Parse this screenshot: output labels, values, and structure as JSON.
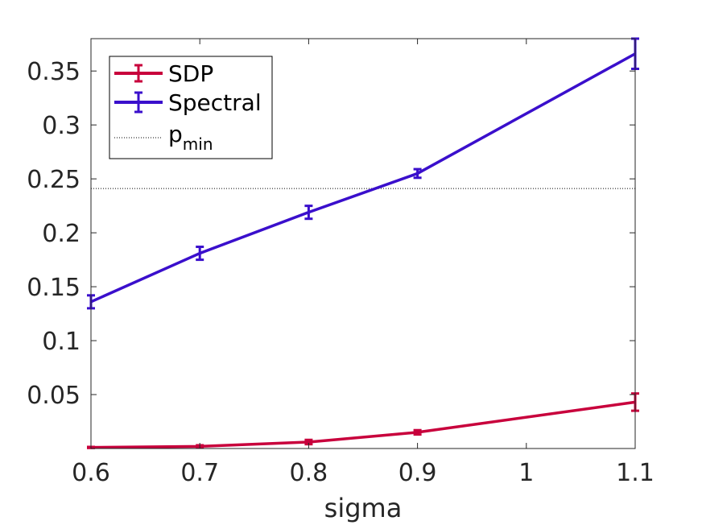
{
  "chart_data": {
    "type": "line",
    "title": "",
    "xlabel": "sigma",
    "ylabel": "",
    "x": [
      0.6,
      0.7,
      0.8,
      0.9,
      1.0,
      1.1
    ],
    "xticks": [
      "0.6",
      "0.7",
      "0.8",
      "0.9",
      "1",
      "1.1"
    ],
    "yticks": [
      "0.05",
      "0.1",
      "0.15",
      "0.2",
      "0.25",
      "0.3",
      "0.35"
    ],
    "xlim": [
      0.6,
      1.1
    ],
    "ylim": [
      0.0,
      0.38
    ],
    "grid": false,
    "legend_position": "top-left",
    "series": [
      {
        "name": "SDP",
        "color": "#c8003c",
        "x": [
          0.6,
          0.7,
          0.8,
          0.9,
          1.1
        ],
        "values": [
          0.001,
          0.002,
          0.006,
          0.015,
          0.043
        ],
        "errors": [
          0.0005,
          0.001,
          0.002,
          0.002,
          0.008
        ]
      },
      {
        "name": "Spectral",
        "color": "#3a0fcc",
        "x": [
          0.6,
          0.7,
          0.8,
          0.9,
          1.1
        ],
        "values": [
          0.136,
          0.181,
          0.219,
          0.255,
          0.366
        ],
        "errors": [
          0.006,
          0.006,
          0.006,
          0.004,
          0.014
        ]
      }
    ],
    "reference_lines": [
      {
        "name": "p",
        "subscript": "min",
        "value": 0.241,
        "style": "dotted",
        "color": "#000000"
      }
    ]
  }
}
